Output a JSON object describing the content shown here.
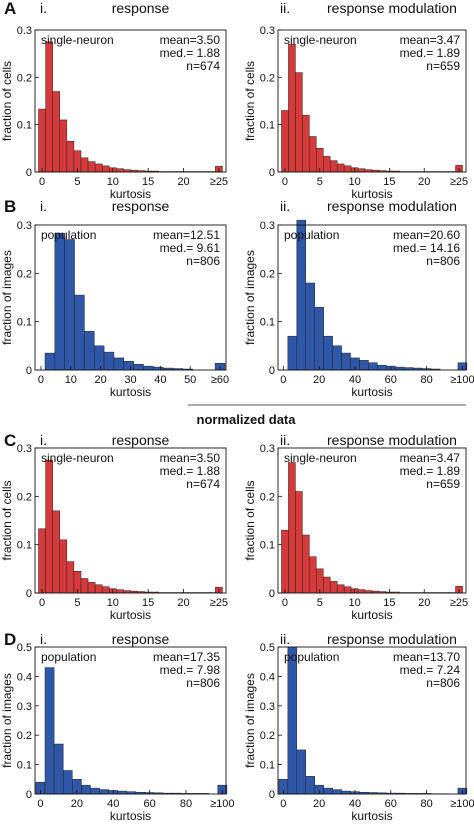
{
  "divider_label": "normalized data",
  "colors": {
    "red_bars": "#d63a3a",
    "blue_bars": "#2f57a8"
  },
  "chart_data": [
    {
      "type": "bar",
      "row": "A",
      "panel": "i.",
      "title": "response",
      "box_label": "single-neuron",
      "stats": [
        "mean=3.50",
        "med.= 1.88",
        "n=674"
      ],
      "xlabel": "kurtosis",
      "ylabel": "fraction of cells",
      "color": "red",
      "xlim": [
        -1,
        26
      ],
      "ylim": [
        0,
        0.3
      ],
      "bin_width": 1,
      "xticks": [
        {
          "v": 0,
          "l": "0"
        },
        {
          "v": 5,
          "l": "5"
        },
        {
          "v": 10,
          "l": "10"
        },
        {
          "v": 15,
          "l": "15"
        },
        {
          "v": 20,
          "l": "20"
        },
        {
          "v": 25,
          "l": "≥25"
        }
      ],
      "yticks": [
        0,
        0.1,
        0.2,
        0.3
      ],
      "x": [
        0,
        1,
        2,
        3,
        4,
        5,
        6,
        7,
        8,
        9,
        10,
        11,
        12,
        13,
        14,
        15,
        16,
        17,
        18,
        19,
        20,
        21,
        22,
        23,
        24,
        25
      ],
      "values": [
        0.133,
        0.275,
        0.17,
        0.11,
        0.065,
        0.045,
        0.03,
        0.022,
        0.017,
        0.013,
        0.009,
        0.007,
        0.005,
        0.004,
        0.003,
        0.002,
        0.002,
        0.001,
        0.001,
        0.001,
        0.001,
        0.001,
        0.001,
        0.001,
        0.001,
        0.012
      ]
    },
    {
      "type": "bar",
      "row": "A",
      "panel": "ii.",
      "title": "response modulation",
      "box_label": "single-neuron",
      "stats": [
        "mean=3.47",
        "med.= 1.89",
        "n=659"
      ],
      "xlabel": "kurtosis",
      "ylabel": "fraction of cells",
      "color": "red",
      "xlim": [
        -1,
        26
      ],
      "ylim": [
        0,
        0.3
      ],
      "bin_width": 1,
      "xticks": [
        {
          "v": 0,
          "l": "0"
        },
        {
          "v": 5,
          "l": "5"
        },
        {
          "v": 10,
          "l": "10"
        },
        {
          "v": 15,
          "l": "15"
        },
        {
          "v": 20,
          "l": "20"
        },
        {
          "v": 25,
          "l": "≥25"
        }
      ],
      "yticks": [
        0,
        0.1,
        0.2,
        0.3
      ],
      "x": [
        0,
        1,
        2,
        3,
        4,
        5,
        6,
        7,
        8,
        9,
        10,
        11,
        12,
        13,
        14,
        15,
        16,
        17,
        18,
        19,
        20,
        21,
        22,
        23,
        24,
        25
      ],
      "values": [
        0.13,
        0.27,
        0.21,
        0.12,
        0.075,
        0.05,
        0.033,
        0.024,
        0.017,
        0.013,
        0.009,
        0.007,
        0.005,
        0.004,
        0.003,
        0.002,
        0.002,
        0.001,
        0.001,
        0.001,
        0.001,
        0.001,
        0.001,
        0.001,
        0.001,
        0.014
      ]
    },
    {
      "type": "bar",
      "row": "B",
      "panel": "i.",
      "title": "response",
      "box_label": "population",
      "stats": [
        "mean=12.51",
        "med.=  9.61",
        "n=806"
      ],
      "xlabel": "kurtosis",
      "ylabel": "fraction of images",
      "color": "blue",
      "xlim": [
        -2,
        62
      ],
      "ylim": [
        0,
        0.3
      ],
      "bin_width": 3.3,
      "xticks": [
        {
          "v": 0,
          "l": "0"
        },
        {
          "v": 10,
          "l": "10"
        },
        {
          "v": 20,
          "l": "20"
        },
        {
          "v": 30,
          "l": "30"
        },
        {
          "v": 40,
          "l": "40"
        },
        {
          "v": 50,
          "l": "50"
        },
        {
          "v": 60,
          "l": "≥60"
        }
      ],
      "yticks": [
        0,
        0.1,
        0.2,
        0.3
      ],
      "x": [
        3,
        6.3,
        9.6,
        12.9,
        16.2,
        19.5,
        22.8,
        26.1,
        29.4,
        32.7,
        36,
        39.3,
        42.6,
        45.9,
        49.2,
        60
      ],
      "values": [
        0.035,
        0.283,
        0.27,
        0.155,
        0.08,
        0.05,
        0.037,
        0.025,
        0.018,
        0.012,
        0.008,
        0.006,
        0.004,
        0.003,
        0.002,
        0.014
      ]
    },
    {
      "type": "bar",
      "row": "B",
      "panel": "ii.",
      "title": "response modulation",
      "box_label": "population",
      "stats": [
        "mean=20.60",
        "med.= 14.16",
        "n=806"
      ],
      "xlabel": "kurtosis",
      "ylabel": "fraction of images",
      "color": "blue",
      "xlim": [
        -3,
        102
      ],
      "ylim": [
        0,
        0.3
      ],
      "bin_width": 5,
      "xticks": [
        {
          "v": 0,
          "l": "0"
        },
        {
          "v": 20,
          "l": "20"
        },
        {
          "v": 40,
          "l": "40"
        },
        {
          "v": 60,
          "l": "60"
        },
        {
          "v": 80,
          "l": "80"
        },
        {
          "v": 100,
          "l": "≥100"
        }
      ],
      "yticks": [
        0,
        0.1,
        0.2,
        0.3
      ],
      "x": [
        5,
        10,
        15,
        20,
        25,
        30,
        35,
        40,
        45,
        50,
        55,
        60,
        65,
        70,
        75,
        80,
        85,
        100
      ],
      "values": [
        0.07,
        0.31,
        0.18,
        0.13,
        0.07,
        0.05,
        0.035,
        0.025,
        0.02,
        0.015,
        0.01,
        0.008,
        0.006,
        0.005,
        0.004,
        0.003,
        0.002,
        0.015
      ]
    },
    {
      "type": "bar",
      "row": "C",
      "panel": "i.",
      "title": "response",
      "box_label": "single-neuron",
      "stats": [
        "mean=3.50",
        "med.= 1.88",
        "n=674"
      ],
      "xlabel": "kurtosis",
      "ylabel": "fraction of cells",
      "color": "red",
      "xlim": [
        -1,
        26
      ],
      "ylim": [
        0,
        0.3
      ],
      "bin_width": 1,
      "xticks": [
        {
          "v": 0,
          "l": "0"
        },
        {
          "v": 5,
          "l": "5"
        },
        {
          "v": 10,
          "l": "10"
        },
        {
          "v": 15,
          "l": "15"
        },
        {
          "v": 20,
          "l": "20"
        },
        {
          "v": 25,
          "l": "≥25"
        }
      ],
      "yticks": [
        0,
        0.1,
        0.2,
        0.3
      ],
      "x": [
        0,
        1,
        2,
        3,
        4,
        5,
        6,
        7,
        8,
        9,
        10,
        11,
        12,
        13,
        14,
        15,
        16,
        17,
        18,
        19,
        20,
        21,
        22,
        23,
        24,
        25
      ],
      "values": [
        0.133,
        0.275,
        0.17,
        0.11,
        0.065,
        0.045,
        0.03,
        0.022,
        0.017,
        0.013,
        0.009,
        0.007,
        0.005,
        0.004,
        0.003,
        0.002,
        0.002,
        0.001,
        0.001,
        0.001,
        0.001,
        0.001,
        0.001,
        0.001,
        0.001,
        0.012
      ]
    },
    {
      "type": "bar",
      "row": "C",
      "panel": "ii.",
      "title": "response modulation",
      "box_label": "single-neuron",
      "stats": [
        "mean=3.47",
        "med.= 1.89",
        "n=659"
      ],
      "xlabel": "kurtosis",
      "ylabel": "fraction of cells",
      "color": "red",
      "xlim": [
        -1,
        26
      ],
      "ylim": [
        0,
        0.3
      ],
      "bin_width": 1,
      "xticks": [
        {
          "v": 0,
          "l": "0"
        },
        {
          "v": 5,
          "l": "5"
        },
        {
          "v": 10,
          "l": "10"
        },
        {
          "v": 15,
          "l": "15"
        },
        {
          "v": 20,
          "l": "20"
        },
        {
          "v": 25,
          "l": "≥25"
        }
      ],
      "yticks": [
        0,
        0.1,
        0.2,
        0.3
      ],
      "x": [
        0,
        1,
        2,
        3,
        4,
        5,
        6,
        7,
        8,
        9,
        10,
        11,
        12,
        13,
        14,
        15,
        16,
        17,
        18,
        19,
        20,
        21,
        22,
        23,
        24,
        25
      ],
      "values": [
        0.13,
        0.27,
        0.21,
        0.12,
        0.075,
        0.05,
        0.033,
        0.024,
        0.017,
        0.013,
        0.009,
        0.007,
        0.005,
        0.004,
        0.003,
        0.002,
        0.002,
        0.001,
        0.001,
        0.001,
        0.001,
        0.001,
        0.001,
        0.001,
        0.001,
        0.014
      ]
    },
    {
      "type": "bar",
      "row": "D",
      "panel": "i.",
      "title": "response",
      "box_label": "population",
      "stats": [
        "mean=17.35",
        "med.=  7.98",
        "n=806"
      ],
      "xlabel": "kurtosis",
      "ylabel": "fraction of images",
      "color": "blue",
      "xlim": [
        -3,
        102
      ],
      "ylim": [
        0,
        0.5
      ],
      "bin_width": 5,
      "xticks": [
        {
          "v": 0,
          "l": "0"
        },
        {
          "v": 20,
          "l": "20"
        },
        {
          "v": 40,
          "l": "40"
        },
        {
          "v": 60,
          "l": "60"
        },
        {
          "v": 80,
          "l": "80"
        },
        {
          "v": 100,
          "l": "≥100"
        }
      ],
      "yticks": [
        0,
        0.1,
        0.2,
        0.3,
        0.4,
        0.5
      ],
      "x": [
        0,
        5,
        10,
        15,
        20,
        25,
        30,
        35,
        40,
        45,
        50,
        55,
        60,
        65,
        70,
        75,
        80,
        85,
        90,
        100
      ],
      "values": [
        0.04,
        0.43,
        0.17,
        0.08,
        0.05,
        0.03,
        0.02,
        0.015,
        0.012,
        0.01,
        0.008,
        0.006,
        0.005,
        0.004,
        0.003,
        0.003,
        0.002,
        0.002,
        0.002,
        0.03
      ]
    },
    {
      "type": "bar",
      "row": "D",
      "panel": "ii.",
      "title": "response modulation",
      "box_label": "population",
      "stats": [
        "mean=13.70",
        "med.=  7.24",
        "n=806"
      ],
      "xlabel": "kurtosis",
      "ylabel": "fraction of images",
      "color": "blue",
      "xlim": [
        -3,
        102
      ],
      "ylim": [
        0,
        0.5
      ],
      "bin_width": 5,
      "xticks": [
        {
          "v": 0,
          "l": "0"
        },
        {
          "v": 20,
          "l": "20"
        },
        {
          "v": 40,
          "l": "40"
        },
        {
          "v": 60,
          "l": "60"
        },
        {
          "v": 80,
          "l": "80"
        },
        {
          "v": 100,
          "l": "≥100"
        }
      ],
      "yticks": [
        0,
        0.1,
        0.2,
        0.3,
        0.4,
        0.5
      ],
      "x": [
        0,
        5,
        10,
        15,
        20,
        25,
        30,
        35,
        40,
        45,
        50,
        55,
        60,
        65,
        70,
        75,
        80,
        85,
        90,
        100
      ],
      "values": [
        0.05,
        0.5,
        0.15,
        0.06,
        0.03,
        0.02,
        0.015,
        0.01,
        0.008,
        0.006,
        0.005,
        0.004,
        0.003,
        0.003,
        0.002,
        0.002,
        0.002,
        0.001,
        0.001,
        0.02
      ]
    }
  ]
}
